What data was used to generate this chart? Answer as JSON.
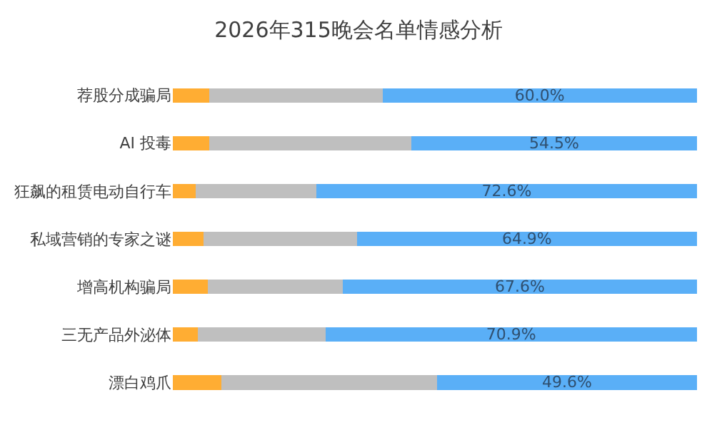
{
  "chart_data": {
    "type": "bar",
    "title": "2026年315晚会名单情感分析",
    "orientation": "horizontal",
    "stacked": true,
    "tick_labels": "y",
    "xlim": [
      0,
      100
    ],
    "categories": [
      "荐股分成骗局",
      "AI 投毒",
      "狂飙的租赁电动自行车",
      "私域营销的专家之谜",
      "增高机构骗局",
      "三无产品外泌体",
      "漂白鸡爪"
    ],
    "series": [
      {
        "color": "#ffad33",
        "values": [
          6.9,
          6.9,
          4.3,
          5.9,
          6.7,
          4.7,
          9.3
        ]
      },
      {
        "color": "#bfbfbf",
        "values": [
          33.1,
          38.6,
          23.1,
          29.2,
          25.7,
          24.4,
          41.1
        ]
      },
      {
        "color": "#5aaff7",
        "values": [
          60.0,
          54.5,
          72.6,
          64.9,
          67.6,
          70.9,
          49.6
        ],
        "value_labels": [
          "60.0%",
          "54.5%",
          "72.6%",
          "64.9%",
          "67.6%",
          "70.9%",
          "49.6%"
        ]
      }
    ]
  }
}
